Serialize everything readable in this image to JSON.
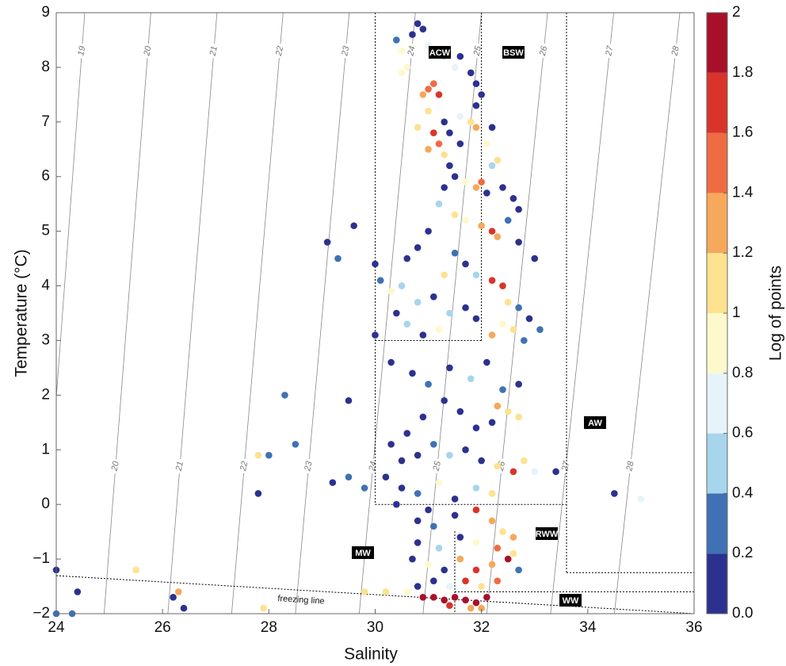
{
  "chart_data": {
    "type": "scatter",
    "x_label": "Salinity",
    "y_label": "Temperature (°C)",
    "xlim": [
      24,
      36
    ],
    "ylim": [
      -2,
      9
    ],
    "xticks": [
      24,
      26,
      28,
      30,
      32,
      34,
      36
    ],
    "yticks": [
      {
        "value": -2,
        "label": "−2"
      },
      {
        "value": -1,
        "label": "−1"
      },
      0,
      1,
      2,
      3,
      4,
      5,
      6,
      7,
      8,
      9
    ],
    "isopycnals": [
      19,
      20,
      21,
      22,
      23,
      24,
      25,
      26,
      27,
      28
    ],
    "annotations": [
      "ACW",
      "BSW",
      "AW",
      "MW",
      "RWW",
      "WW",
      "freezing line"
    ],
    "colorbar": {
      "label": "Log of points",
      "lim": [
        0,
        2
      ],
      "ticks": [
        {
          "value": 0,
          "label": "0.0"
        },
        0.2,
        0.4,
        0.6,
        0.8,
        1,
        1.2,
        1.4,
        1.6,
        1.8,
        2
      ],
      "colors": [
        "#2c318f",
        "#3f71b4",
        "#a7d5ec",
        "#e6f4f9",
        "#fdf9cc",
        "#fde28f",
        "#f6a85b",
        "#ef6c43",
        "#d9342a",
        "#a8102a"
      ]
    },
    "x": [
      30.8,
      30.9,
      30.7,
      30.4,
      30.5,
      30.6,
      30.5,
      31.0,
      31.3,
      31.6,
      31.5,
      31.8,
      31.9,
      32.0,
      31.9,
      31.1,
      31.0,
      30.9,
      31.2,
      31.0,
      31.3,
      31.6,
      31.8,
      31.9,
      31.1,
      31.2,
      31.0,
      31.3,
      30.8,
      31.4,
      31.6,
      32.1,
      32.2,
      32.3,
      31.4,
      31.5,
      31.7,
      31.9,
      32.0,
      32.2,
      32.1,
      32.4,
      32.6,
      32.7,
      31.3,
      31.2,
      31.5,
      31.7,
      32.0,
      32.2,
      32.3,
      32.5,
      32.7,
      33.0,
      31.0,
      30.8,
      30.6,
      30.0,
      30.1,
      30.3,
      30.5,
      30.8,
      31.1,
      31.3,
      31.5,
      31.7,
      31.9,
      32.2,
      32.4,
      32.5,
      32.7,
      32.9,
      33.1,
      32.8,
      32.6,
      32.4,
      32.2,
      31.9,
      31.7,
      31.4,
      31.2,
      30.9,
      30.6,
      30.4,
      30.0,
      30.3,
      30.7,
      31.0,
      31.4,
      31.8,
      32.1,
      32.4,
      32.7,
      32.3,
      32.5,
      32.7,
      32.2,
      31.9,
      31.6,
      31.3,
      30.9,
      30.6,
      30.3,
      30.5,
      30.8,
      31.1,
      31.4,
      31.7,
      32.0,
      32.3,
      32.6,
      32.8,
      33.0,
      30.2,
      30.5,
      30.8,
      31.2,
      31.5,
      31.9,
      32.2,
      30.4,
      31.0,
      30.8,
      31.1,
      31.5,
      31.9,
      32.2,
      32.4,
      32.6,
      32.3,
      31.9,
      31.6,
      31.2,
      30.8,
      30.7,
      31.0,
      31.3,
      31.6,
      31.9,
      32.2,
      32.5,
      32.6,
      32.7,
      32.3,
      32.0,
      31.7,
      31.4,
      31.1,
      30.8,
      30.6,
      30.2,
      29.8,
      30.9,
      31.1,
      31.3,
      31.5,
      31.7,
      31.9,
      32.1,
      31.4,
      31.8,
      32.0,
      24.0,
      24.0,
      24.3,
      24.4,
      25.5,
      26.2,
      26.4,
      26.3,
      27.9,
      27.8,
      28.0,
      27.8,
      28.5,
      28.3,
      29.2,
      29.5,
      29.1,
      29.3,
      29.6,
      29.5,
      29.8,
      34.5,
      33.4,
      35.0
    ],
    "values": [
      8.8,
      8.7,
      8.6,
      8.5,
      8.3,
      8.0,
      7.9,
      8.4,
      8.2,
      8.2,
      8.0,
      7.9,
      7.7,
      7.5,
      7.3,
      7.7,
      7.6,
      7.5,
      7.5,
      7.2,
      7.0,
      7.1,
      7.0,
      6.9,
      6.8,
      6.6,
      6.5,
      6.4,
      6.9,
      6.8,
      6.6,
      6.6,
      6.9,
      6.3,
      6.2,
      6.0,
      5.9,
      5.8,
      5.9,
      6.2,
      5.7,
      5.8,
      5.6,
      5.4,
      5.8,
      5.5,
      5.3,
      5.2,
      5.1,
      5.0,
      4.9,
      5.2,
      4.8,
      4.5,
      5.0,
      4.7,
      4.5,
      4.4,
      4.1,
      3.9,
      4.0,
      3.7,
      3.8,
      4.2,
      4.6,
      4.4,
      4.2,
      4.1,
      4.0,
      3.7,
      3.6,
      3.4,
      3.2,
      3.0,
      3.2,
      3.3,
      3.1,
      3.4,
      3.6,
      3.5,
      3.2,
      3.1,
      3.3,
      3.5,
      3.1,
      2.6,
      2.4,
      2.2,
      2.5,
      2.3,
      2.6,
      2.1,
      2.2,
      1.8,
      1.7,
      1.6,
      1.5,
      1.4,
      1.7,
      1.9,
      1.6,
      1.3,
      1.1,
      0.8,
      0.9,
      1.1,
      0.9,
      1.0,
      0.8,
      0.7,
      0.6,
      0.8,
      0.6,
      0.5,
      0.3,
      0.2,
      0.4,
      0.1,
      0.3,
      0.2,
      0.0,
      -0.1,
      -0.3,
      -0.4,
      -0.2,
      -0.1,
      -0.3,
      -0.5,
      -0.6,
      -0.8,
      -0.7,
      -0.6,
      -0.8,
      -0.7,
      -1.0,
      -1.1,
      -1.2,
      -1.0,
      -1.2,
      -1.1,
      -1.0,
      -0.9,
      -1.2,
      -1.4,
      -1.5,
      -1.4,
      -1.5,
      -1.4,
      -1.5,
      -1.6,
      -1.6,
      -1.6,
      -1.7,
      -1.7,
      -1.75,
      -1.7,
      -1.75,
      -1.8,
      -1.7,
      -1.85,
      -1.9,
      -1.9,
      -1.2,
      -2.0,
      -2.0,
      -1.6,
      -1.2,
      -1.7,
      -1.9,
      -1.6,
      -1.9,
      0.9,
      0.9,
      0.2,
      1.1,
      2.0,
      0.4,
      0.5,
      4.8,
      4.5,
      5.1,
      1.9,
      0.3,
      0.2,
      0.6,
      0.1
    ],
    "c": [
      0,
      0.1,
      0.1,
      0.3,
      0.9,
      0.9,
      0.8,
      0.7,
      0.5,
      0.1,
      0.7,
      0.1,
      0,
      0,
      0.1,
      1.5,
      1.5,
      1.3,
      1.6,
      1.1,
      0.1,
      0.7,
      1.1,
      1.3,
      1.6,
      1.5,
      1.4,
      1.2,
      1.2,
      0,
      0,
      0.8,
      0,
      1.2,
      0,
      0.1,
      0.8,
      1.4,
      1.5,
      0.5,
      0,
      0,
      0.1,
      0,
      0,
      0.4,
      1.1,
      0.8,
      1.3,
      1.6,
      1.4,
      0.3,
      0,
      0,
      0,
      0.1,
      0,
      0,
      0.2,
      0.9,
      0.4,
      0.6,
      0,
      1,
      0.3,
      0.1,
      0.5,
      1.7,
      1.6,
      1,
      0.3,
      0,
      0.2,
      0.3,
      1.1,
      0.8,
      1.3,
      0,
      0,
      0.6,
      0.9,
      0,
      0.4,
      0,
      0,
      0,
      0,
      0.3,
      0,
      0.5,
      0.1,
      0.2,
      0,
      1.3,
      1.2,
      1,
      0.1,
      0,
      0,
      0.1,
      0,
      0,
      0,
      0.1,
      0,
      0.3,
      0.6,
      0,
      0,
      1.1,
      1.7,
      1.2,
      0.7,
      0,
      0,
      0.2,
      0.9,
      0,
      0.6,
      1.1,
      0.1,
      0,
      0,
      0.2,
      0,
      1.7,
      1.3,
      1.2,
      1.4,
      1.5,
      0.8,
      0,
      0.5,
      0,
      0.1,
      0.9,
      0,
      1.3,
      1.7,
      1.4,
      1.9,
      1,
      0.2,
      1.5,
      1.2,
      1.6,
      0.7,
      0,
      0,
      0.9,
      1,
      1,
      1.9,
      2,
      1.9,
      1.9,
      2,
      1.8,
      1.9,
      1.7,
      1.4,
      1.3,
      0.1,
      0.3,
      0.3,
      0.1,
      1,
      0.1,
      0,
      1.3,
      1,
      1,
      0.3,
      0.1,
      0.3,
      0.3,
      0,
      0.3,
      0,
      0.3,
      0,
      0,
      0.3,
      0.1,
      0.1,
      0.7
    ]
  }
}
